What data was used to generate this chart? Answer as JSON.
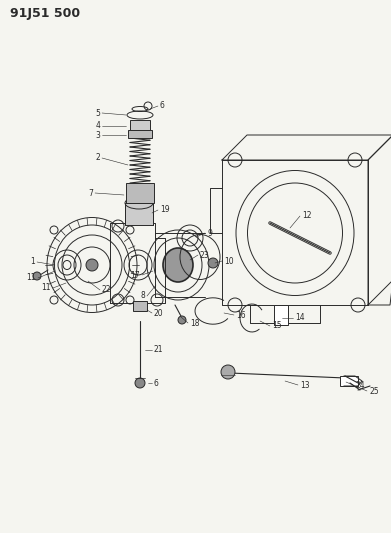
{
  "title": "91J51 500",
  "bg_color": "#f5f5f0",
  "line_color": "#2a2a2a",
  "fig_width": 3.91,
  "fig_height": 5.33,
  "dpi": 100
}
